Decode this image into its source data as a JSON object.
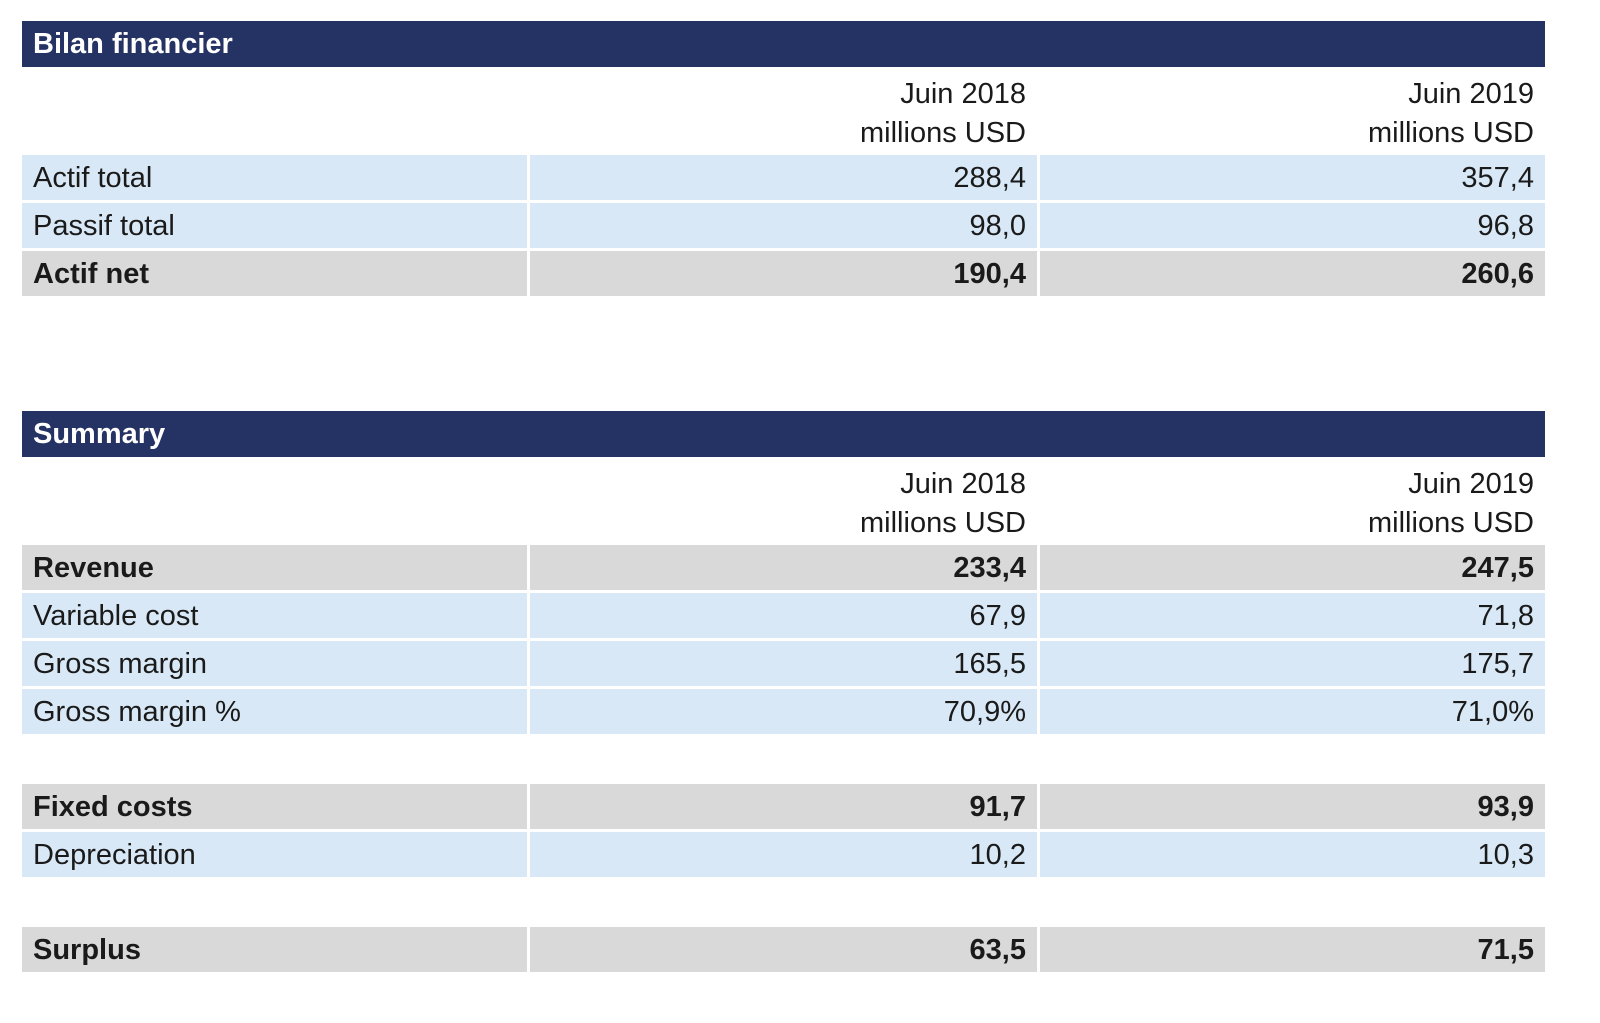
{
  "sections": [
    {
      "title": "Bilan financier",
      "col1_line1": "Juin 2018",
      "col1_line2": "millions USD",
      "col2_line1": "Juin 2019",
      "col2_line2": "millions USD",
      "rows": [
        {
          "label": "Actif total",
          "v2018": "288,4",
          "v2019": "357,4"
        },
        {
          "label": "Passif total",
          "v2018": "98,0",
          "v2019": "96,8"
        },
        {
          "label": "Actif net",
          "v2018": "190,4",
          "v2019": "260,6"
        }
      ]
    },
    {
      "title": "Summary",
      "col1_line1": "Juin 2018",
      "col1_line2": "millions USD",
      "col2_line1": "Juin 2019",
      "col2_line2": "millions USD",
      "rows": [
        {
          "label": "Revenue",
          "v2018": "233,4",
          "v2019": "247,5"
        },
        {
          "label": "Variable cost",
          "v2018": "67,9",
          "v2019": "71,8"
        },
        {
          "label": "Gross margin",
          "v2018": "165,5",
          "v2019": "175,7"
        },
        {
          "label": "Gross margin %",
          "v2018": "70,9%",
          "v2019": "71,0%"
        },
        {
          "label": "Fixed costs",
          "v2018": "91,7",
          "v2019": "93,9"
        },
        {
          "label": "Depreciation",
          "v2018": "10,2",
          "v2019": "10,3"
        },
        {
          "label": "Surplus",
          "v2018": "63,5",
          "v2019": "71,5"
        }
      ]
    }
  ]
}
